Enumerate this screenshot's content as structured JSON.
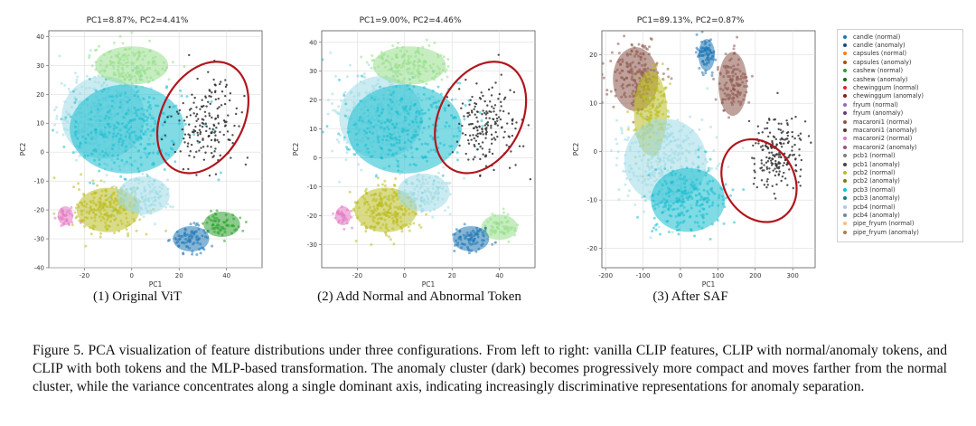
{
  "chart_data": [
    {
      "type": "scatter",
      "title": "PC1=8.87%, PC2=4.41%",
      "subtitle": "(1) Original ViT",
      "xlabel": "PC1",
      "ylabel": "PC2",
      "xlim": [
        -35,
        55
      ],
      "ylim": [
        -40,
        42
      ],
      "xticks": [
        -20,
        0,
        20,
        40
      ],
      "yticks": [
        40,
        30,
        20,
        10,
        0,
        -10,
        -20,
        -30,
        -40
      ],
      "anomaly_ellipse": {
        "center": [
          30,
          12
        ],
        "semi_axes": [
          24,
          25
        ],
        "rotation_deg": -25
      },
      "clusters": [
        {
          "series": "pcb2 (normal)",
          "color": "#9edae5",
          "center": [
            -12,
            12
          ],
          "spread": [
            16,
            13
          ],
          "n": 320
        },
        {
          "series": "pcb4 (normal)",
          "color": "#17becf",
          "center": [
            -2,
            8
          ],
          "spread": [
            22,
            14
          ],
          "n": 260
        },
        {
          "series": "macaroni2 (normal)",
          "color": "#98df8a",
          "center": [
            0,
            30
          ],
          "spread": [
            14,
            6
          ],
          "n": 150
        },
        {
          "series": "pcb3 (normal)",
          "color": "#bcbd22",
          "center": [
            -10,
            -20
          ],
          "spread": [
            12,
            7
          ],
          "n": 240
        },
        {
          "series": "pcb1 (normal)",
          "color": "#9edae5",
          "center": [
            5,
            -15
          ],
          "spread": [
            10,
            6
          ],
          "n": 120
        },
        {
          "series": "capsules (normal)",
          "color": "#2ca02c",
          "center": [
            38,
            -25
          ],
          "spread": [
            7,
            4
          ],
          "n": 60
        },
        {
          "series": "chewinggum (normal)",
          "color": "#1f77b4",
          "center": [
            25,
            -30
          ],
          "spread": [
            7,
            4
          ],
          "n": 80
        },
        {
          "series": "macaroni1 (normal)",
          "color": "#e377c2",
          "center": [
            -28,
            -22
          ],
          "spread": [
            3,
            3
          ],
          "n": 30
        },
        {
          "series": "anomaly",
          "color": "#333333",
          "center": [
            32,
            10
          ],
          "spread": [
            12,
            12
          ],
          "n": 180
        }
      ]
    },
    {
      "type": "scatter",
      "title": "PC1=9.00%, PC2=4.46%",
      "subtitle": "(2) Add Normal and Abnormal Token",
      "xlabel": "PC1",
      "ylabel": "PC2",
      "xlim": [
        -35,
        55
      ],
      "ylim": [
        -38,
        44
      ],
      "xticks": [
        -20,
        0,
        20,
        40
      ],
      "yticks": [
        40,
        30,
        20,
        10,
        0,
        -10,
        -20,
        -30
      ],
      "anomaly_ellipse": {
        "center": [
          32,
          14
        ],
        "semi_axes": [
          24,
          25
        ],
        "rotation_deg": -25
      },
      "clusters": [
        {
          "series": "pcb2 (normal)",
          "color": "#9edae5",
          "center": [
            -10,
            14
          ],
          "spread": [
            16,
            13
          ],
          "n": 320
        },
        {
          "series": "pcb4 (normal)",
          "color": "#17becf",
          "center": [
            0,
            10
          ],
          "spread": [
            22,
            14
          ],
          "n": 260
        },
        {
          "series": "macaroni2 (normal)",
          "color": "#98df8a",
          "center": [
            2,
            32
          ],
          "spread": [
            14,
            6
          ],
          "n": 150
        },
        {
          "series": "pcb3 (normal)",
          "color": "#bcbd22",
          "center": [
            -8,
            -18
          ],
          "spread": [
            12,
            7
          ],
          "n": 240
        },
        {
          "series": "pcb1 (normal)",
          "color": "#9edae5",
          "center": [
            8,
            -12
          ],
          "spread": [
            10,
            6
          ],
          "n": 120
        },
        {
          "series": "capsules (normal)",
          "color": "#98df8a",
          "center": [
            40,
            -24
          ],
          "spread": [
            7,
            4
          ],
          "n": 60
        },
        {
          "series": "chewinggum (normal)",
          "color": "#1f77b4",
          "center": [
            28,
            -28
          ],
          "spread": [
            7,
            4
          ],
          "n": 80
        },
        {
          "series": "macaroni1 (normal)",
          "color": "#e377c2",
          "center": [
            -26,
            -20
          ],
          "spread": [
            3,
            3
          ],
          "n": 30
        },
        {
          "series": "anomaly",
          "color": "#333333",
          "center": [
            34,
            12
          ],
          "spread": [
            12,
            12
          ],
          "n": 180
        }
      ]
    },
    {
      "type": "scatter",
      "title": "PC1=89.13%, PC2=0.87%",
      "subtitle": "(3) After SAF",
      "xlabel": "PC1",
      "ylabel": "PC2",
      "xlim": [
        -210,
        360
      ],
      "ylim": [
        -24,
        25
      ],
      "xticks": [
        -200,
        -100,
        0,
        100,
        200,
        300
      ],
      "yticks": [
        20,
        10,
        0,
        -10,
        -20
      ],
      "anomaly_ellipse": {
        "center": [
          210,
          -6
        ],
        "semi_axes": [
          130,
          11
        ],
        "rotation_deg": -30
      },
      "clusters": [
        {
          "series": "pipe_fryum (normal)",
          "color": "#8c564b",
          "center": [
            -120,
            15
          ],
          "spread": [
            55,
            6
          ],
          "n": 200
        },
        {
          "series": "fryum (normal)",
          "color": "#8c564b",
          "center": [
            140,
            14
          ],
          "spread": [
            35,
            6
          ],
          "n": 120
        },
        {
          "series": "chewinggum (normal)",
          "color": "#1f77b4",
          "center": [
            70,
            20
          ],
          "spread": [
            20,
            3
          ],
          "n": 80
        },
        {
          "series": "pcb3 (normal)",
          "color": "#bcbd22",
          "center": [
            -80,
            8
          ],
          "spread": [
            40,
            8
          ],
          "n": 180
        },
        {
          "series": "pcb2 (normal)",
          "color": "#9edae5",
          "center": [
            -40,
            -2
          ],
          "spread": [
            100,
            8
          ],
          "n": 320
        },
        {
          "series": "pcb4 (normal)",
          "color": "#17becf",
          "center": [
            20,
            -10
          ],
          "spread": [
            90,
            6
          ],
          "n": 220
        },
        {
          "series": "anomaly",
          "color": "#333333",
          "center": [
            260,
            0
          ],
          "spread": [
            60,
            6
          ],
          "n": 200
        }
      ]
    }
  ],
  "legend": [
    {
      "label": "candle (normal)",
      "color": "#1f77b4"
    },
    {
      "label": "candle (anomaly)",
      "color": "#174a7c"
    },
    {
      "label": "capsules (normal)",
      "color": "#ff7f0e"
    },
    {
      "label": "capsules (anomaly)",
      "color": "#a85200"
    },
    {
      "label": "cashew (normal)",
      "color": "#2ca02c"
    },
    {
      "label": "cashew (anomaly)",
      "color": "#1b661b"
    },
    {
      "label": "chewinggum (normal)",
      "color": "#d62728"
    },
    {
      "label": "chewinggum (anomaly)",
      "color": "#8c1a1a"
    },
    {
      "label": "fryum (normal)",
      "color": "#9467bd"
    },
    {
      "label": "fryum (anomaly)",
      "color": "#5e3f7c"
    },
    {
      "label": "macaroni1 (normal)",
      "color": "#8c564b"
    },
    {
      "label": "macaroni1 (anomaly)",
      "color": "#573530"
    },
    {
      "label": "macaroni2 (normal)",
      "color": "#e377c2"
    },
    {
      "label": "macaroni2 (anomaly)",
      "color": "#9a4f84"
    },
    {
      "label": "pcb1 (normal)",
      "color": "#7f7f7f"
    },
    {
      "label": "pcb1 (anomaly)",
      "color": "#444444"
    },
    {
      "label": "pcb2 (normal)",
      "color": "#bcbd22"
    },
    {
      "label": "pcb2 (anomaly)",
      "color": "#7a7a15"
    },
    {
      "label": "pcb3 (normal)",
      "color": "#17becf"
    },
    {
      "label": "pcb3 (anomaly)",
      "color": "#0e7a85"
    },
    {
      "label": "pcb4 (normal)",
      "color": "#aec7e8"
    },
    {
      "label": "pcb4 (anomaly)",
      "color": "#6f86a8"
    },
    {
      "label": "pipe_fryum (normal)",
      "color": "#ffbb78"
    },
    {
      "label": "pipe_fryum (anomaly)",
      "color": "#b07d4c"
    }
  ],
  "ellipse_color": "#b0161d",
  "figure_caption": "Figure 5. PCA visualization of feature distributions under three configurations. From left to right: vanilla CLIP features, CLIP with normal/anomaly tokens, and CLIP with both tokens and the MLP-based transformation. The anomaly cluster (dark) becomes progressively more compact and moves farther from the normal cluster, while the variance concentrates along a single dominant axis, indicating increasingly discriminative representations for anomaly separation."
}
